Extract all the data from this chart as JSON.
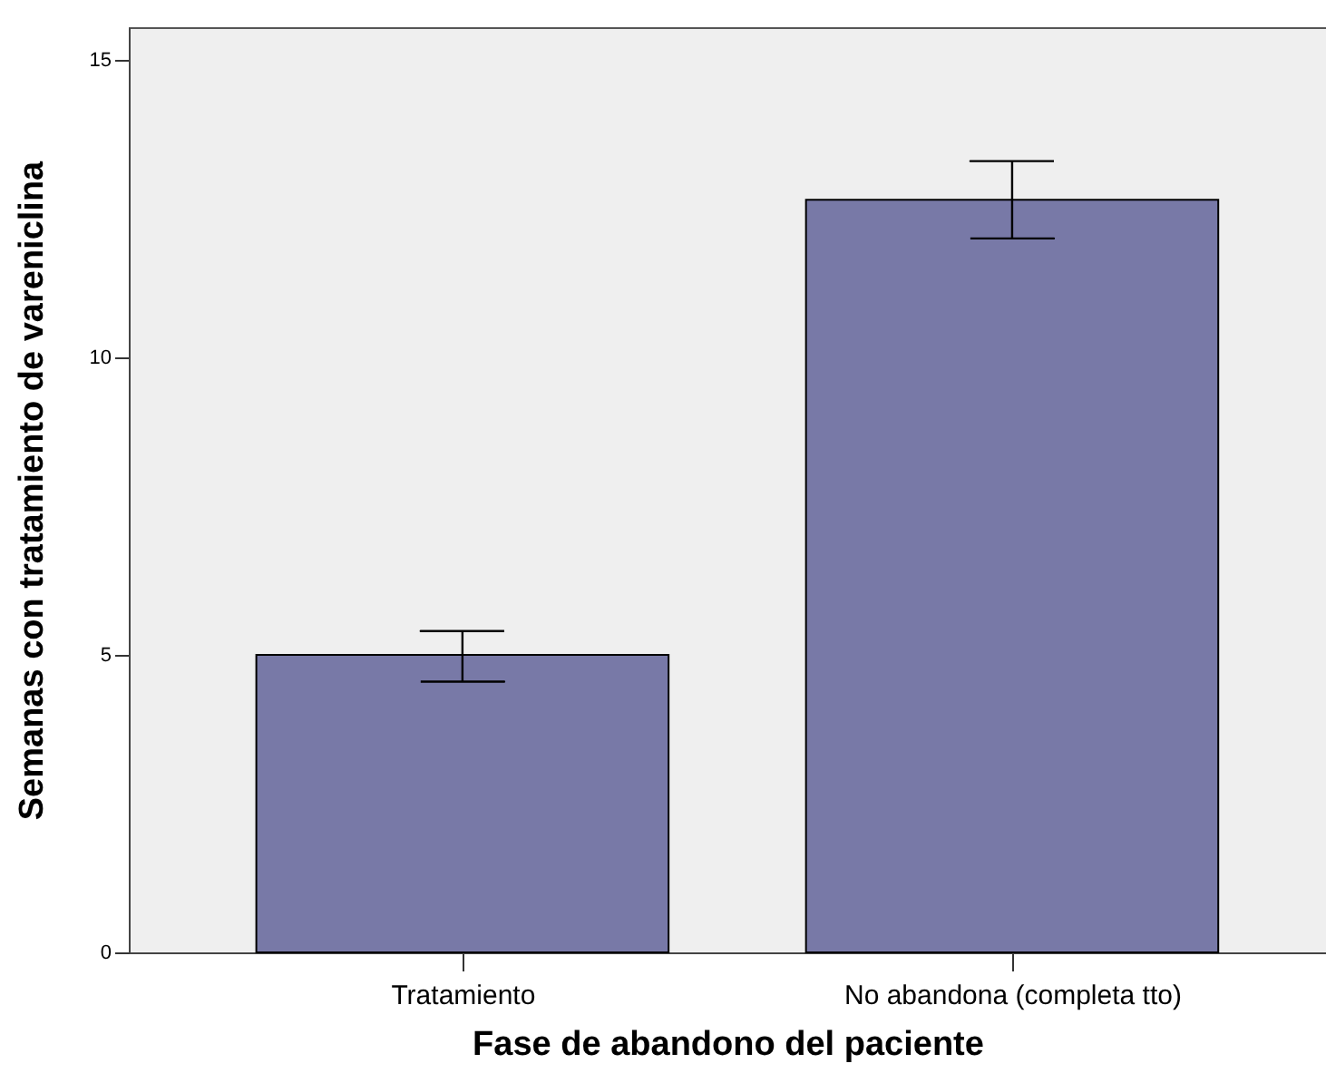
{
  "chart_data": {
    "type": "bar",
    "xlabel": "Fase de abandono del paciente",
    "ylabel": "Semanas con tratamiento de vareniclina",
    "categories": [
      "Tratamiento",
      "No abandona (completa tto)"
    ],
    "values": [
      5.0,
      12.65
    ],
    "color": "#7879a7",
    "errors": [
      [
        4.55,
        5.4
      ],
      [
        12.0,
        13.3
      ]
    ],
    "ylim": [
      0,
      15.55
    ],
    "yticks": [
      0,
      5,
      10,
      15
    ],
    "grid": false
  }
}
